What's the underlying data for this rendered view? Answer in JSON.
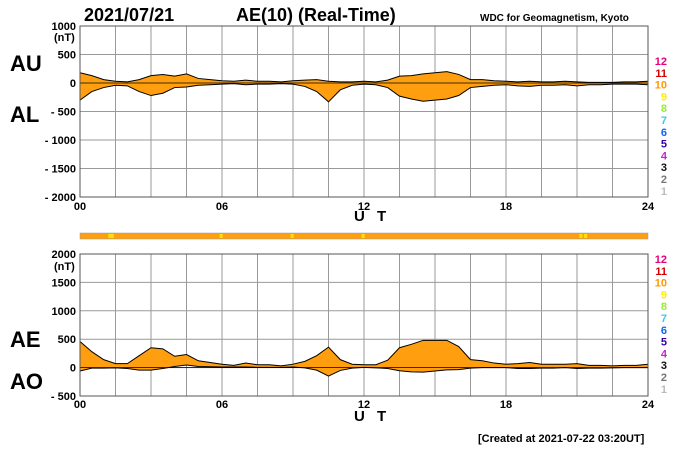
{
  "header": {
    "date": "2021/07/21",
    "title": "AE(10) (Real-Time)",
    "source": "WDC for Geomagnetism, Kyoto"
  },
  "footer": {
    "created": "[Created at 2021-07-22 03:20UT]"
  },
  "colors": {
    "fill": "#ff9f10",
    "line": "#000000",
    "station_bar": "#ff9f10",
    "station_bar_gap": "#ffe600"
  },
  "station_labels": [
    "12",
    "11",
    "10",
    "9",
    "8",
    "7",
    "6",
    "5",
    "4",
    "3",
    "2",
    "1"
  ],
  "station_colors": [
    "#e6007e",
    "#d40000",
    "#ff9900",
    "#ffee00",
    "#99ee33",
    "#33ccee",
    "#1166ee",
    "#3300aa",
    "#cc22cc",
    "#111111",
    "#777777",
    "#bbbbbb"
  ],
  "chart_data": [
    {
      "type": "area",
      "name": "AU-AL",
      "title": "AE(10) (Real-Time)",
      "xlabel": "U T",
      "ylabel": "(nT)",
      "xlim": [
        0,
        24
      ],
      "ylim": [
        -2000,
        1000
      ],
      "x_ticks": [
        "00",
        "06",
        "12",
        "18",
        "24"
      ],
      "y_ticks": [
        "1000",
        "500",
        "0",
        "- 500",
        "- 1000",
        "- 1500",
        "- 2000"
      ],
      "y_tick_values": [
        1000,
        500,
        0,
        -500,
        -1000,
        -1500,
        -2000
      ],
      "side_labels": {
        "upper": "AU",
        "lower": "AL"
      },
      "x": [
        0,
        0.5,
        1,
        1.5,
        2,
        2.5,
        3,
        3.5,
        4,
        4.5,
        5,
        5.5,
        6,
        6.5,
        7,
        7.5,
        8,
        8.5,
        9,
        9.5,
        10,
        10.5,
        11,
        11.5,
        12,
        12.5,
        13,
        13.5,
        14,
        14.5,
        15,
        15.5,
        16,
        16.5,
        17,
        17.5,
        18,
        18.5,
        19,
        19.5,
        20,
        20.5,
        21,
        21.5,
        22,
        22.5,
        23,
        23.5,
        24
      ],
      "series": [
        {
          "name": "AU",
          "values": [
            180,
            130,
            60,
            30,
            20,
            60,
            130,
            150,
            120,
            160,
            80,
            60,
            40,
            30,
            50,
            30,
            30,
            20,
            40,
            50,
            60,
            30,
            20,
            20,
            30,
            20,
            50,
            120,
            130,
            160,
            180,
            200,
            150,
            60,
            60,
            40,
            30,
            20,
            30,
            20,
            20,
            30,
            20,
            10,
            10,
            10,
            20,
            20,
            30
          ]
        },
        {
          "name": "AL",
          "values": [
            -300,
            -150,
            -80,
            -40,
            -50,
            -150,
            -220,
            -180,
            -80,
            -70,
            -40,
            -30,
            -20,
            -10,
            -30,
            -20,
            -20,
            -10,
            -20,
            -60,
            -150,
            -330,
            -120,
            -40,
            -20,
            -30,
            -80,
            -230,
            -280,
            -320,
            -300,
            -280,
            -220,
            -80,
            -60,
            -40,
            -30,
            -50,
            -60,
            -40,
            -40,
            -30,
            -50,
            -30,
            -30,
            -20,
            -20,
            -20,
            -30
          ]
        }
      ]
    },
    {
      "type": "area",
      "name": "AE-AO",
      "xlabel": "U T",
      "ylabel": "(nT)",
      "xlim": [
        0,
        24
      ],
      "ylim": [
        -500,
        2000
      ],
      "x_ticks": [
        "00",
        "06",
        "12",
        "18",
        "24"
      ],
      "y_ticks": [
        "2000",
        "1500",
        "1000",
        "500",
        "0",
        "- 500"
      ],
      "y_tick_values": [
        2000,
        1500,
        1000,
        500,
        0,
        -500
      ],
      "side_labels": {
        "upper": "AE",
        "lower": "AO"
      },
      "x": [
        0,
        0.5,
        1,
        1.5,
        2,
        2.5,
        3,
        3.5,
        4,
        4.5,
        5,
        5.5,
        6,
        6.5,
        7,
        7.5,
        8,
        8.5,
        9,
        9.5,
        10,
        10.5,
        11,
        11.5,
        12,
        12.5,
        13,
        13.5,
        14,
        14.5,
        15,
        15.5,
        16,
        16.5,
        17,
        17.5,
        18,
        18.5,
        19,
        19.5,
        20,
        20.5,
        21,
        21.5,
        22,
        22.5,
        23,
        23.5,
        24
      ],
      "series": [
        {
          "name": "AE",
          "values": [
            460,
            280,
            140,
            70,
            70,
            210,
            350,
            330,
            200,
            230,
            120,
            90,
            60,
            40,
            80,
            50,
            50,
            30,
            60,
            110,
            210,
            360,
            140,
            60,
            50,
            50,
            130,
            350,
            410,
            480,
            480,
            480,
            370,
            140,
            120,
            80,
            60,
            70,
            90,
            60,
            60,
            60,
            70,
            40,
            40,
            30,
            40,
            40,
            60
          ]
        },
        {
          "name": "AO",
          "values": [
            -60,
            -10,
            -10,
            -5,
            -15,
            -45,
            -45,
            -15,
            20,
            45,
            20,
            15,
            10,
            10,
            10,
            5,
            5,
            5,
            10,
            -5,
            -45,
            -150,
            -50,
            -10,
            5,
            -5,
            -15,
            -55,
            -75,
            -80,
            -60,
            -40,
            -35,
            -10,
            0,
            0,
            0,
            -15,
            -15,
            -10,
            -10,
            0,
            -15,
            -10,
            -10,
            -5,
            0,
            0,
            0
          ]
        }
      ]
    }
  ]
}
